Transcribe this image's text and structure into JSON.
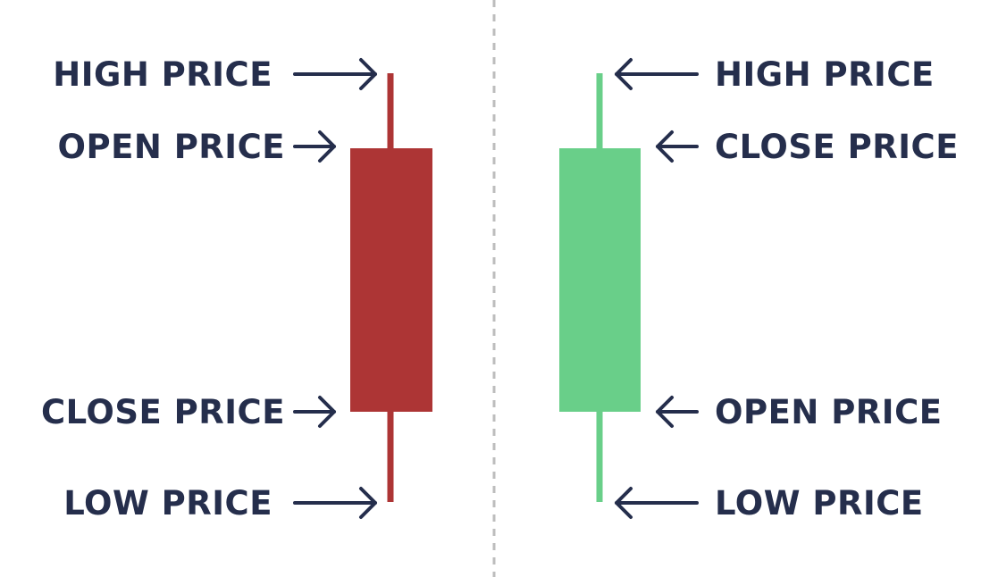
{
  "colors": {
    "bearish": "#AD3535",
    "bullish": "#69CF89",
    "text": "#252E4C",
    "divider": "#BDBDBD",
    "background": "#FFFFFF"
  },
  "bearish": {
    "high_label": "HIGH PRICE",
    "open_label": "OPEN PRICE",
    "close_label": "CLOSE PRICE",
    "low_label": "LOW PRICE"
  },
  "bullish": {
    "high_label": "HIGH PRICE",
    "close_label": "CLOSE PRICE",
    "open_label": "OPEN PRICE",
    "low_label": "LOW PRICE"
  }
}
